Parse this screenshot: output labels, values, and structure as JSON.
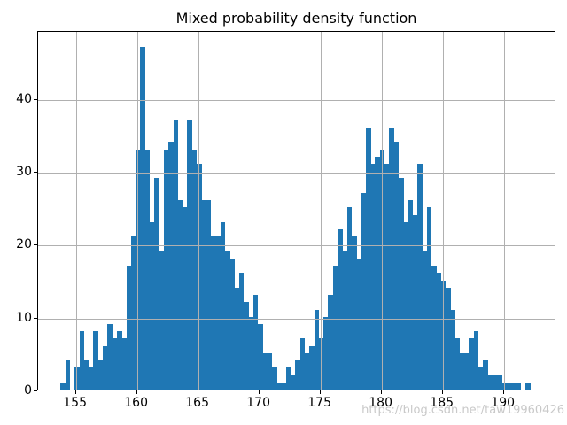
{
  "title": "Mixed probability density function",
  "watermark": "https://blog.csdn.net/taw19960426",
  "colors": {
    "bar": "#1f77b4",
    "grid": "#b0b0b0",
    "spine": "#000000",
    "tick_text": "#000000",
    "watermark": "#c9c9c9",
    "background": "#ffffff"
  },
  "chart_data": {
    "type": "bar",
    "subtype": "histogram",
    "title": "Mixed probability density function",
    "xlabel": "",
    "ylabel": "",
    "grid": true,
    "legend_position": "none",
    "x_start": 153.75,
    "bin_width": 0.384,
    "counts": [
      1,
      4,
      0,
      3,
      8,
      4,
      3,
      8,
      4,
      6,
      9,
      7,
      8,
      7,
      17,
      21,
      33,
      47,
      33,
      23,
      29,
      19,
      33,
      34,
      37,
      26,
      25,
      37,
      33,
      31,
      26,
      26,
      21,
      21,
      23,
      19,
      18,
      14,
      16,
      12,
      10,
      13,
      9,
      5,
      5,
      3,
      1,
      1,
      3,
      2,
      4,
      7,
      5,
      6,
      11,
      7,
      10,
      13,
      17,
      22,
      19,
      25,
      21,
      18,
      27,
      36,
      31,
      32,
      33,
      31,
      36,
      34,
      29,
      23,
      26,
      24,
      31,
      19,
      25,
      17,
      16,
      15,
      14,
      11,
      7,
      5,
      5,
      7,
      8,
      3,
      4,
      2,
      2,
      2,
      1,
      1,
      1,
      1,
      0,
      1
    ],
    "x_ticks": [
      155,
      160,
      165,
      170,
      175,
      180,
      185,
      190
    ],
    "y_ticks": [
      0,
      10,
      20,
      30,
      40
    ],
    "xlim": [
      151.91,
      194.3
    ],
    "ylim": [
      0,
      49.35
    ]
  }
}
